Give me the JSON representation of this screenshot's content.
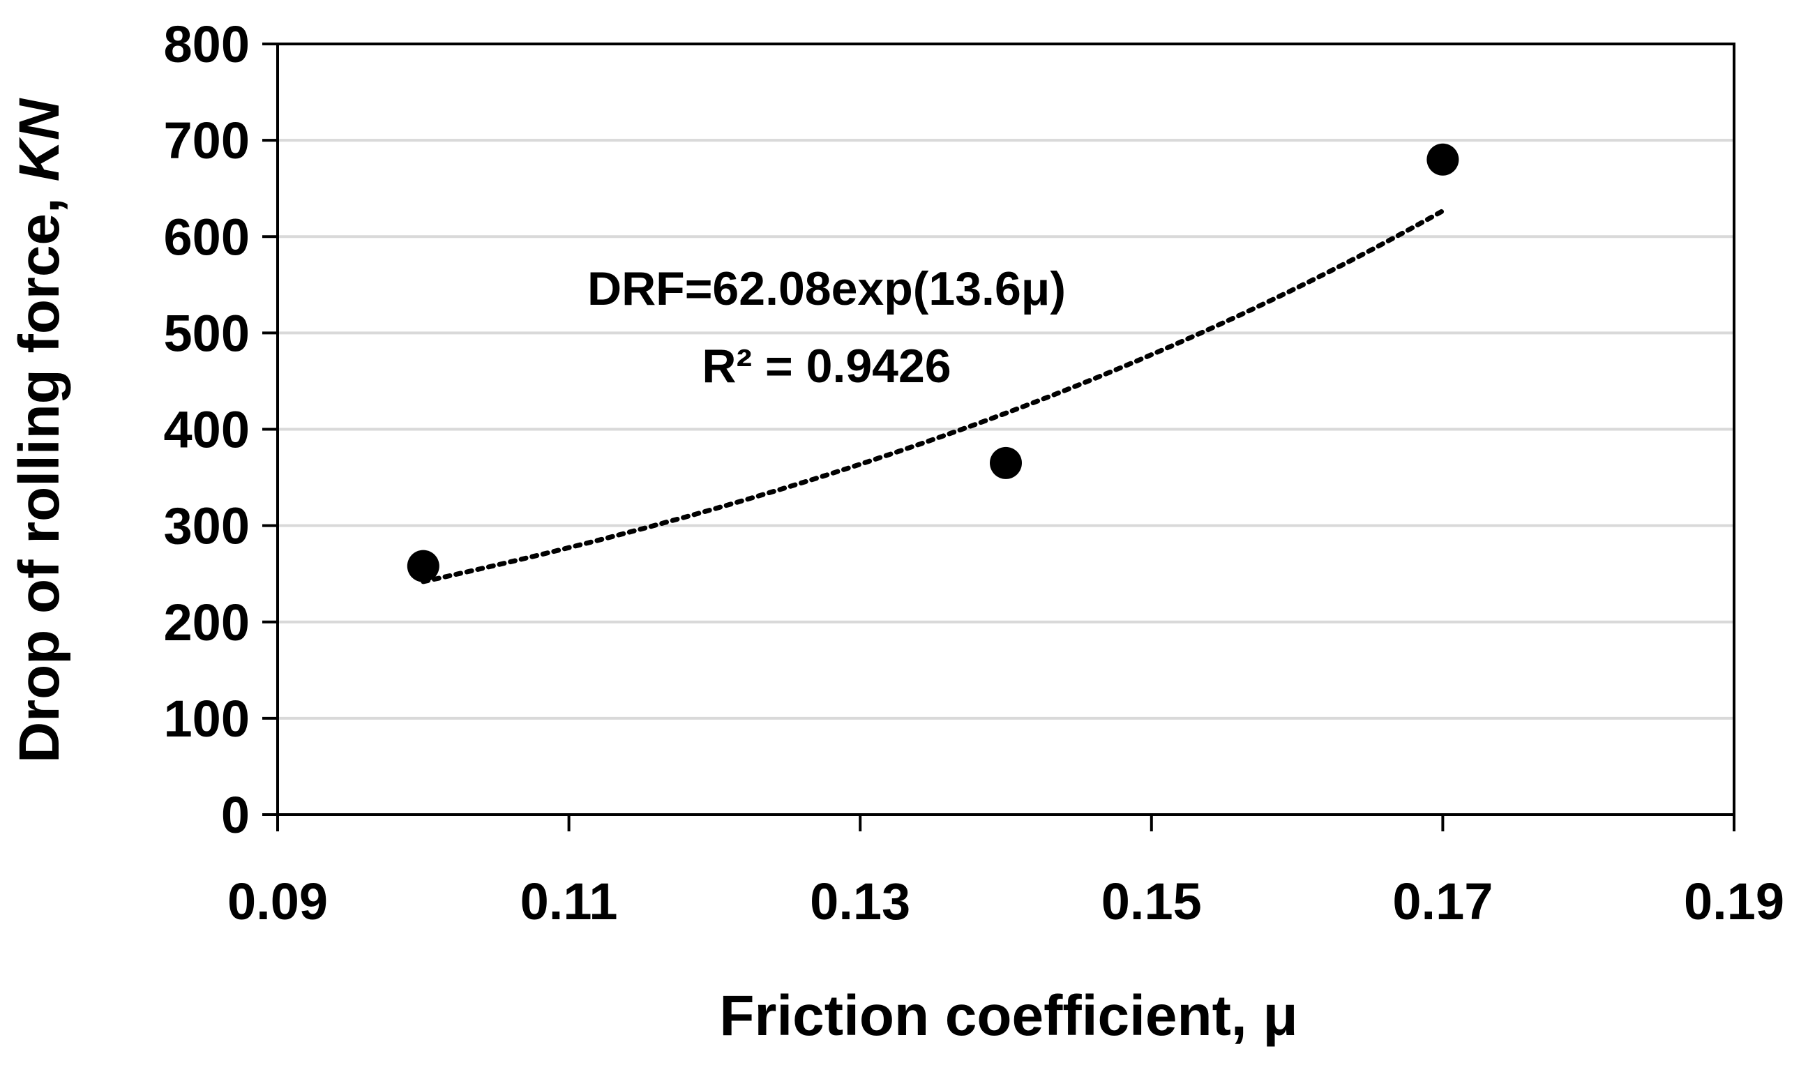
{
  "chart_data": {
    "type": "scatter",
    "x": [
      0.1,
      0.14,
      0.17
    ],
    "y": [
      258,
      365,
      680
    ],
    "xlim": [
      0.09,
      0.19
    ],
    "ylim": [
      0,
      800
    ],
    "xticks": [
      "0.09",
      "0.11",
      "0.13",
      "0.15",
      "0.17",
      "0.19"
    ],
    "yticks": [
      "0",
      "100",
      "200",
      "300",
      "400",
      "500",
      "600",
      "700",
      "800"
    ],
    "xlabel": "Friction coefficient, μ",
    "ylabel_main": "Drop of rolling force, ",
    "ylabel_unit": "KN",
    "grid": "horizontal",
    "marker_color": "#000000",
    "trendline": {
      "type": "exponential",
      "a": 62.08,
      "b": 13.6,
      "x_range": [
        0.1,
        0.17
      ],
      "style": "dotted",
      "equation_label": "DRF=62.08exp(13.6μ)",
      "r2_label": "R² = 0.9426"
    }
  }
}
